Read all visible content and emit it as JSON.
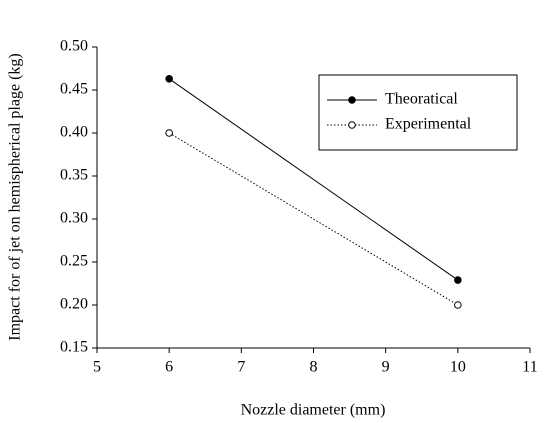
{
  "chart_data": {
    "type": "line",
    "x_label": "Nozzle diameter (mm)",
    "y_label": "Impact for of jet on hemispherical plage (kg)",
    "x": [
      6,
      10
    ],
    "series": [
      {
        "name": "Theoratical",
        "color": "#000000",
        "line_style": "solid",
        "marker": "filled",
        "values": [
          0.463,
          0.229
        ]
      },
      {
        "name": "Experimental",
        "color": "#000000",
        "line_style": "dotted",
        "marker": "open",
        "values": [
          0.4,
          0.2
        ]
      }
    ],
    "xlim": [
      5,
      11
    ],
    "xticks": [
      5,
      6,
      7,
      8,
      9,
      10,
      11
    ],
    "ylim": [
      0.15,
      0.5
    ],
    "yticks": [
      0.15,
      {
        "value": 0.2,
        "label": "0.20"
      },
      0.25,
      {
        "value": 0.3,
        "label": "0.30"
      },
      0.35,
      {
        "value": 0.4,
        "label": "0.40"
      },
      0.45,
      {
        "value": 0.5,
        "label": "0.50"
      }
    ],
    "grid": false,
    "legend_position": "upper right"
  }
}
